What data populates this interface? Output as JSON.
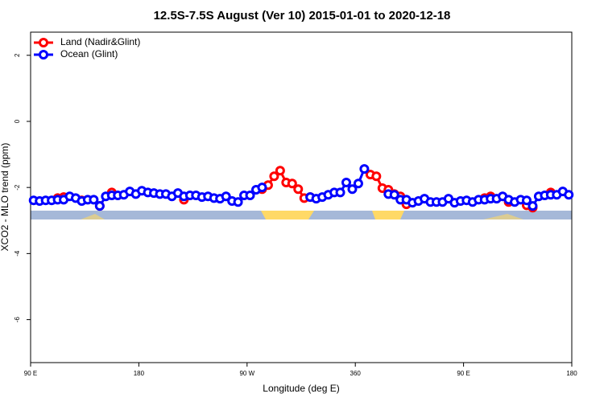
{
  "chart_data": {
    "type": "line",
    "title": "12.5S-7.5S August (Ver 10)   2015-01-01 to 2020-12-18",
    "x_label": "Longitude (deg E)",
    "y_label": "XCO2 - MLO trend (ppm)",
    "x": [
      92.5,
      97.5,
      102.5,
      107.5,
      112.5,
      117.5,
      122.5,
      127.5,
      132.5,
      137.5,
      142.5,
      147.5,
      152.5,
      157.5,
      162.5,
      167.5,
      172.5,
      177.5,
      182.5,
      187.5,
      192.5,
      197.5,
      202.5,
      207.5,
      212.5,
      217.5,
      222.5,
      227.5,
      232.5,
      237.5,
      242.5,
      247.5,
      252.5,
      257.5,
      262.5,
      267.5,
      272.5,
      277.5,
      282.5,
      287.5,
      292.5,
      297.5,
      302.5,
      307.5,
      312.5,
      317.5,
      322.5,
      327.5,
      332.5,
      337.5,
      342.5,
      347.5,
      352.5,
      357.5,
      362.5,
      367.5,
      372.5,
      377.5,
      382.5,
      387.5,
      392.5,
      397.5,
      402.5,
      407.5,
      412.5,
      417.5,
      422.5,
      427.5,
      432.5,
      437.5,
      442.5,
      447.5,
      452.5,
      457.5,
      462.5,
      467.5,
      472.5,
      477.5,
      482.5,
      487.5,
      492.5,
      497.5,
      502.5,
      507.5,
      512.5,
      517.5,
      522.5,
      527.5,
      532.5,
      537.5
    ],
    "series": [
      {
        "name": "Land (Nadir&Glint)",
        "color": "#ff0000",
        "values": [
          null,
          null,
          null,
          null,
          -2.32,
          -2.29,
          null,
          null,
          -2.39,
          null,
          null,
          -2.56,
          null,
          -2.15,
          null,
          null,
          null,
          null,
          null,
          null,
          null,
          null,
          null,
          null,
          null,
          -2.37,
          null,
          null,
          null,
          null,
          null,
          null,
          null,
          null,
          null,
          null,
          null,
          null,
          -2.05,
          -1.93,
          -1.66,
          -1.49,
          -1.85,
          -1.88,
          -2.05,
          -2.32,
          -2.29,
          null,
          null,
          null,
          null,
          null,
          null,
          null,
          null,
          null,
          -1.61,
          -1.66,
          -2.02,
          -2.07,
          -2.2,
          -2.27,
          -2.51,
          null,
          null,
          null,
          null,
          null,
          null,
          null,
          null,
          null,
          null,
          null,
          null,
          -2.32,
          -2.27,
          null,
          null,
          -2.44,
          null,
          null,
          -2.54,
          -2.61,
          null,
          null,
          -2.15,
          null,
          null,
          null
        ]
      },
      {
        "name": "Ocean (Glint)",
        "color": "#0000ff",
        "values": [
          -2.39,
          -2.41,
          -2.39,
          -2.39,
          -2.37,
          -2.37,
          -2.27,
          -2.32,
          -2.41,
          -2.37,
          -2.37,
          -2.56,
          -2.27,
          -2.24,
          -2.24,
          -2.22,
          -2.12,
          -2.2,
          -2.1,
          -2.15,
          -2.17,
          -2.2,
          -2.2,
          -2.27,
          -2.17,
          -2.27,
          -2.24,
          -2.24,
          -2.29,
          -2.27,
          -2.32,
          -2.34,
          -2.27,
          -2.41,
          -2.44,
          -2.24,
          -2.24,
          -2.07,
          -2.0,
          null,
          null,
          null,
          null,
          null,
          null,
          null,
          -2.29,
          -2.34,
          -2.29,
          -2.22,
          -2.15,
          -2.15,
          -1.85,
          -2.05,
          -1.88,
          -1.44,
          null,
          null,
          null,
          -2.2,
          -2.22,
          -2.37,
          -2.37,
          -2.46,
          -2.41,
          -2.34,
          -2.44,
          -2.44,
          -2.44,
          -2.34,
          -2.46,
          -2.41,
          -2.39,
          -2.44,
          -2.37,
          -2.37,
          -2.34,
          -2.34,
          -2.27,
          -2.37,
          -2.44,
          -2.37,
          -2.39,
          -2.56,
          -2.27,
          -2.24,
          -2.22,
          -2.22,
          -2.12,
          -2.22
        ]
      }
    ],
    "xlim": [
      90,
      540
    ],
    "ylim": [
      -7.3,
      2.7
    ],
    "xticks": [
      {
        "value": 90,
        "label": "90 E"
      },
      180,
      {
        "value": 270,
        "label": "90 W"
      },
      360,
      {
        "value": 450,
        "label": "90 E"
      },
      180
    ],
    "yticks": [
      -6,
      -4,
      -2,
      0,
      2
    ],
    "legend": "top-left"
  }
}
